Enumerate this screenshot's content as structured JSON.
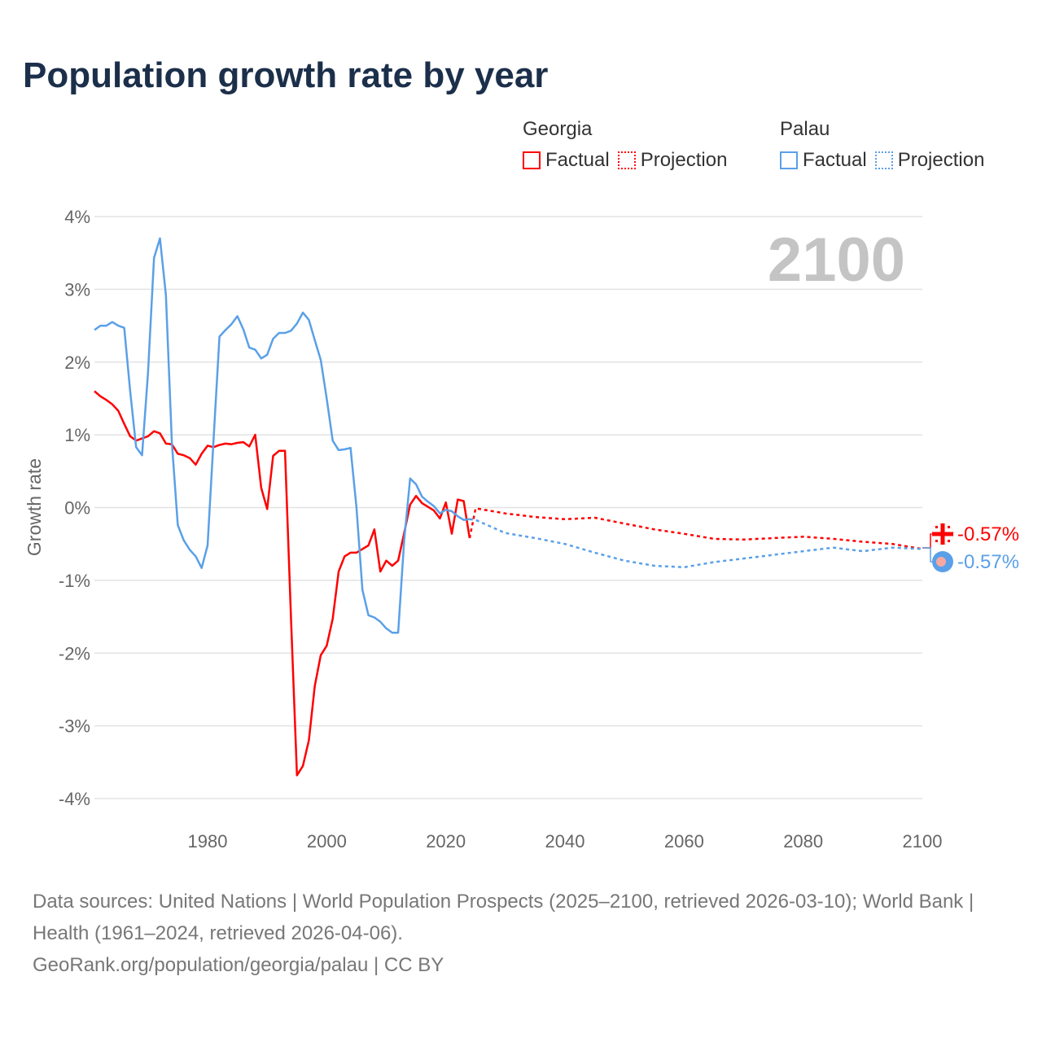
{
  "title": "Population growth rate by year",
  "legend": {
    "groups": [
      {
        "name": "Georgia",
        "factual": "Factual",
        "projection": "Projection",
        "color": "#ff0000"
      },
      {
        "name": "Palau",
        "factual": "Factual",
        "projection": "Projection",
        "color": "#5aa0e8"
      }
    ]
  },
  "current_year": "2100",
  "end_labels": {
    "georgia": "-0.57%",
    "palau": "-0.57%"
  },
  "footer": {
    "sources": "Data sources: United Nations | World Population Prospects (2025–2100, retrieved 2026-03-10); World Bank | Health (1961–2024, retrieved 2026-04-06).",
    "attribution": "GeoRank.org/population/georgia/palau | CC BY"
  },
  "chart_data": {
    "type": "line",
    "title": "Population growth rate by year",
    "xlabel": "",
    "ylabel": "Growth rate",
    "xlim": [
      1961,
      2100
    ],
    "ylim": [
      -4,
      4
    ],
    "xticks": [
      1980,
      2000,
      2020,
      2040,
      2060,
      2080,
      2100
    ],
    "xtick_labels": [
      "1980",
      "2000",
      "2020",
      "2040",
      "2060",
      "2080",
      "2100"
    ],
    "yticks": [
      4,
      3,
      2,
      1,
      0,
      -1,
      -2,
      -3,
      -4
    ],
    "ytick_labels": [
      "4%",
      "3%",
      "2%",
      "1%",
      "0%",
      "-1%",
      "-2%",
      "-3%",
      "-4%"
    ],
    "grid": true,
    "legend_position": "top-right",
    "series": [
      {
        "name": "Georgia Factual",
        "color": "#ff0000",
        "dash": "solid",
        "x_start": 1961,
        "values": [
          1.6,
          1.53,
          1.48,
          1.42,
          1.33,
          1.15,
          0.98,
          0.92,
          0.95,
          0.98,
          1.05,
          1.02,
          0.88,
          0.87,
          0.74,
          0.72,
          0.68,
          0.59,
          0.74,
          0.85,
          0.83,
          0.86,
          0.88,
          0.87,
          0.89,
          0.9,
          0.84,
          1.0,
          0.27,
          -0.02,
          0.71,
          0.78,
          0.78,
          -1.5,
          -3.68,
          -3.55,
          -3.2,
          -2.45,
          -2.03,
          -1.9,
          -1.53,
          -0.88,
          -0.67,
          -0.62,
          -0.62,
          -0.57,
          -0.52,
          -0.3,
          -0.88,
          -0.73,
          -0.8,
          -0.73,
          -0.35,
          0.04,
          0.16,
          0.06,
          0.01,
          -0.04,
          -0.15,
          0.07,
          -0.36,
          0.11,
          0.09,
          -0.42
        ]
      },
      {
        "name": "Palau Factual",
        "color": "#5aa0e8",
        "dash": "solid",
        "x_start": 1961,
        "values": [
          2.44,
          2.5,
          2.5,
          2.55,
          2.5,
          2.47,
          1.6,
          0.83,
          0.72,
          1.85,
          3.43,
          3.7,
          2.92,
          0.9,
          -0.24,
          -0.45,
          -0.58,
          -0.67,
          -0.83,
          -0.52,
          0.93,
          2.35,
          2.44,
          2.52,
          2.63,
          2.45,
          2.2,
          2.17,
          2.05,
          2.1,
          2.32,
          2.4,
          2.4,
          2.43,
          2.53,
          2.68,
          2.58,
          2.3,
          2.03,
          1.5,
          0.92,
          0.79,
          0.8,
          0.82,
          0.0,
          -1.13,
          -1.48,
          -1.51,
          -1.57,
          -1.66,
          -1.72,
          -1.72,
          -0.45,
          0.4,
          0.32,
          0.15,
          0.08,
          0.02,
          -0.08,
          -0.03,
          -0.05,
          -0.12,
          -0.17,
          -0.16
        ]
      },
      {
        "name": "Georgia Projection",
        "color": "#ff0000",
        "dash": "dotted",
        "x": [
          2024,
          2025,
          2030,
          2035,
          2040,
          2045,
          2050,
          2055,
          2060,
          2065,
          2070,
          2075,
          2080,
          2085,
          2090,
          2095,
          2100
        ],
        "values": [
          -0.42,
          -0.01,
          -0.08,
          -0.13,
          -0.16,
          -0.14,
          -0.22,
          -0.3,
          -0.36,
          -0.43,
          -0.44,
          -0.42,
          -0.4,
          -0.43,
          -0.47,
          -0.5,
          -0.57
        ]
      },
      {
        "name": "Palau Projection",
        "color": "#5aa0e8",
        "dash": "dotted",
        "x": [
          2024,
          2025,
          2030,
          2035,
          2040,
          2045,
          2050,
          2055,
          2060,
          2065,
          2070,
          2075,
          2080,
          2085,
          2090,
          2095,
          2100
        ],
        "values": [
          -0.16,
          -0.17,
          -0.35,
          -0.42,
          -0.5,
          -0.62,
          -0.73,
          -0.8,
          -0.82,
          -0.75,
          -0.7,
          -0.65,
          -0.6,
          -0.55,
          -0.6,
          -0.55,
          -0.57
        ]
      }
    ]
  }
}
